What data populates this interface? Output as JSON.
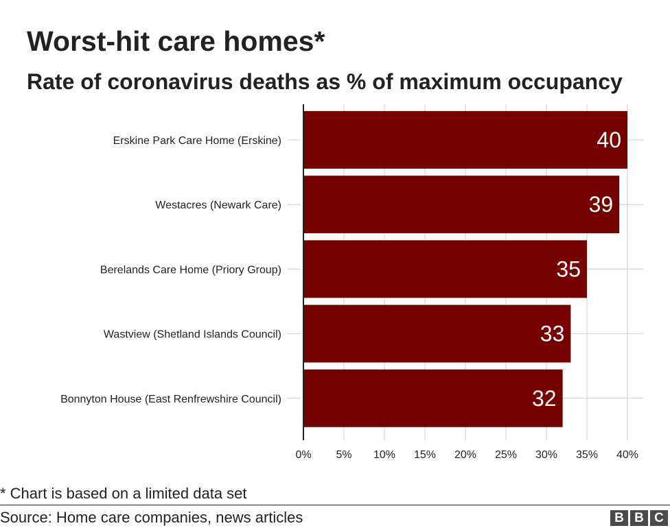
{
  "chart_data": {
    "type": "bar",
    "orientation": "horizontal",
    "title": "Worst-hit care homes*",
    "subtitle": "Rate of coronavirus deaths as % of maximum occupancy",
    "categories": [
      "Erskine Park Care Home (Erskine)",
      "Westacres (Newark Care)",
      "Berelands Care Home (Priory Group)",
      "Wastview (Shetland Islands Council)",
      "Bonnyton House (East Renfrewshire Council)"
    ],
    "values": [
      40,
      39,
      35,
      33,
      32
    ],
    "data_labels": [
      "40",
      "39",
      "35",
      "33",
      "32"
    ],
    "x_ticks": [
      "0%",
      "5%",
      "10%",
      "15%",
      "20%",
      "25%",
      "30%",
      "35%",
      "40%"
    ],
    "xlim": [
      0,
      40
    ],
    "tick_step": 5,
    "xlabel": "",
    "ylabel": "",
    "grid": true,
    "bar_color": "#750000",
    "label_color": "#ffffff"
  },
  "footnote": "* Chart is based on a limited data set",
  "source": "Source: Home care companies, news articles",
  "logo": {
    "letters": [
      "B",
      "B",
      "C"
    ]
  }
}
